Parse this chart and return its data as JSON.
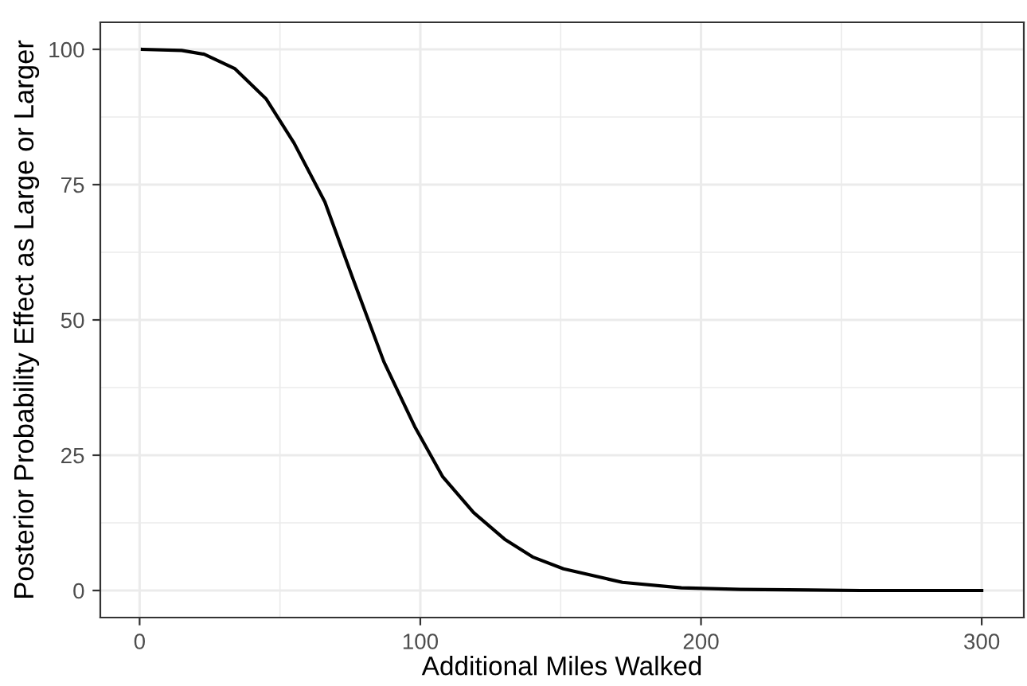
{
  "chart_data": {
    "type": "line",
    "xlabel": "Additional Miles Walked",
    "ylabel": "Posterior Probability Effect as Large or Larger",
    "x": [
      1,
      15,
      23,
      34,
      45,
      55,
      66,
      76,
      87,
      98,
      108,
      119,
      130,
      140,
      151,
      172,
      193,
      214,
      257,
      300
    ],
    "series": [
      {
        "color": "#000000",
        "values": [
          100,
          99.8,
          99.1,
          96.4,
          90.9,
          82.7,
          71.8,
          57.6,
          42.3,
          30.3,
          21,
          14.4,
          9.5,
          6.2,
          4,
          1.5,
          0.5,
          0.2,
          0,
          0
        ]
      }
    ],
    "xlim": [
      -14,
      315
    ],
    "ylim": [
      -5,
      105
    ],
    "xticks": [
      0,
      100,
      200,
      300
    ],
    "yticks": [
      0,
      25,
      50,
      75,
      100
    ],
    "grid": true,
    "marker": "none",
    "line_style": "solid"
  }
}
